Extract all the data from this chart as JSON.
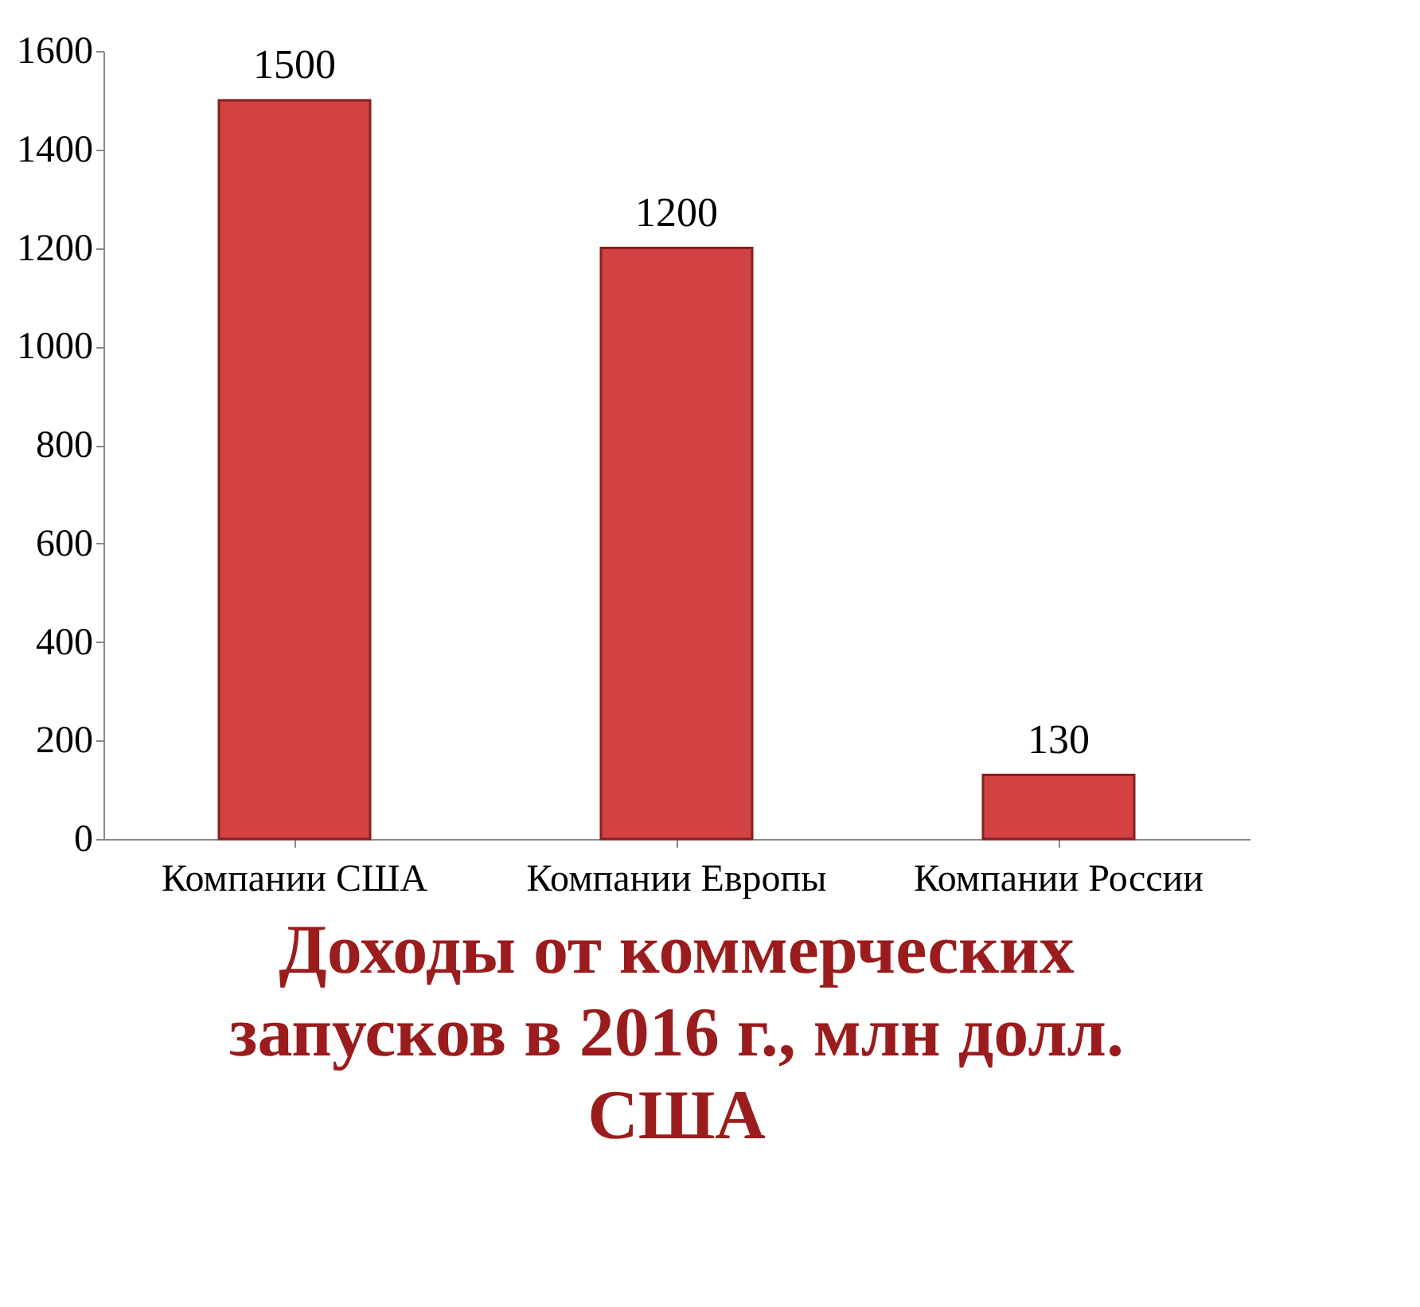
{
  "chart_data": {
    "type": "bar",
    "title": "Доходы от коммерческих запусков в 2016 г., млн долл. США",
    "categories": [
      "Компании США",
      "Компании Европы",
      "Компании России"
    ],
    "values": [
      1500,
      1200,
      130
    ],
    "color": "#d24242",
    "ylim": [
      0,
      1600
    ],
    "yticks": [
      0,
      200,
      400,
      600,
      800,
      1000,
      1200,
      1400,
      1600
    ],
    "data_labels": true,
    "grid": false
  }
}
